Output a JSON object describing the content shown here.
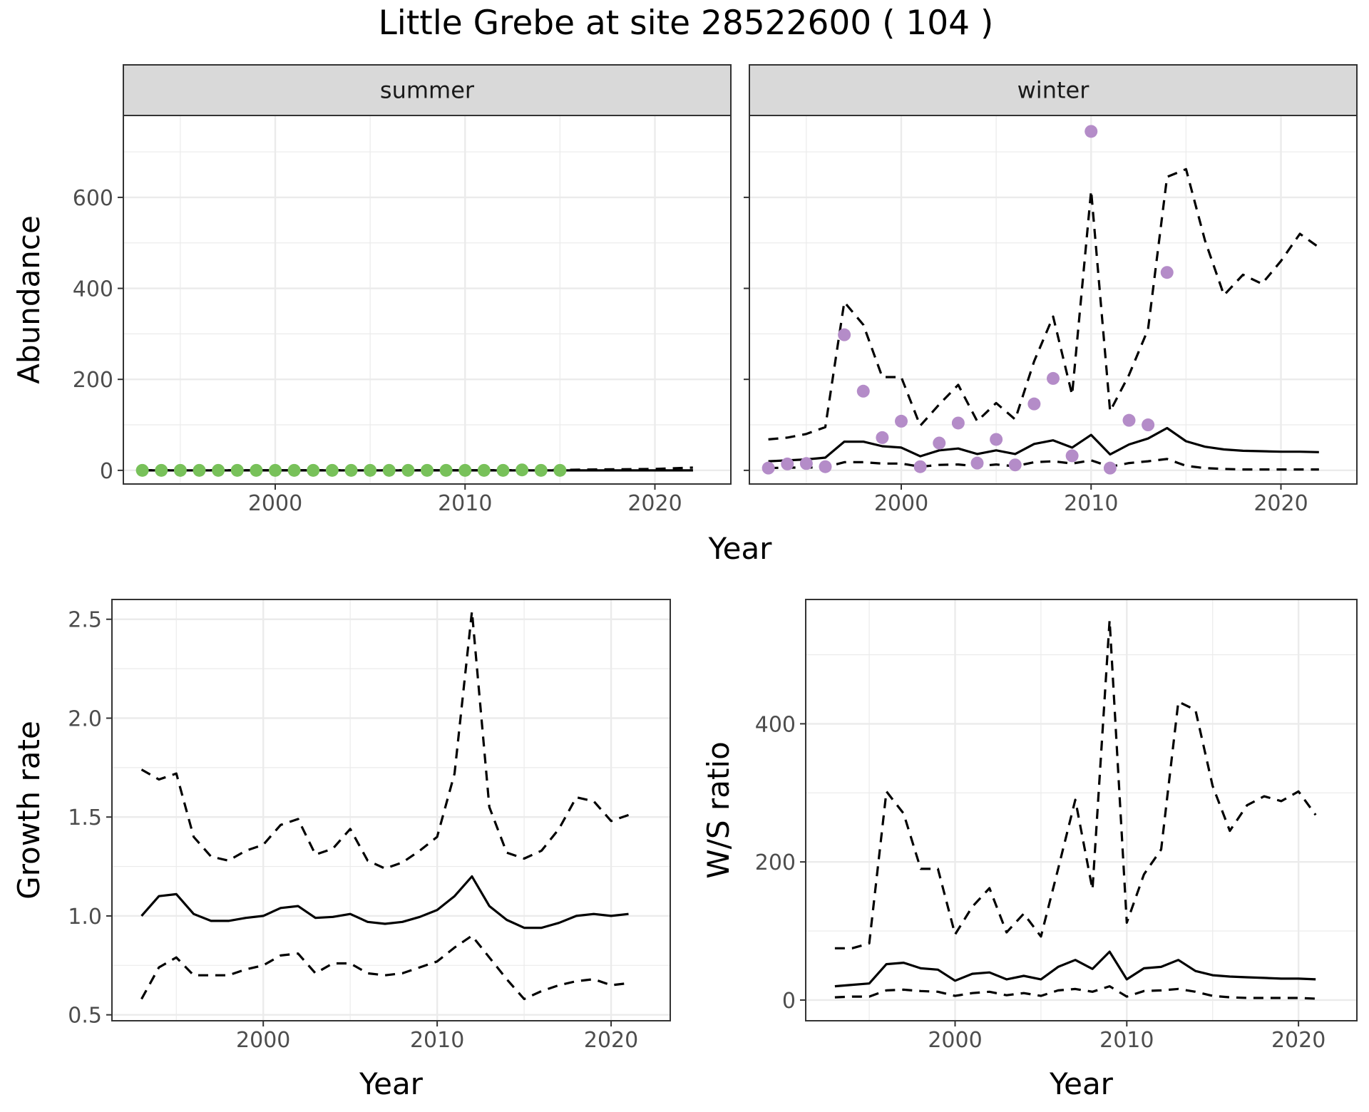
{
  "title": "Little Grebe at site 28522600 ( 104 )",
  "colors": {
    "summer_points": "#78c15a",
    "winter_points": "#b48cc8",
    "line": "#000000",
    "grid": "#ebebeb",
    "strip_bg": "#d9d9d9",
    "panel_border": "#333333"
  },
  "chart_data": [
    {
      "type": "scatter",
      "panel": "summer",
      "strip_label": "summer",
      "xlabel": "Year",
      "ylabel": "Abundance",
      "xlim": [
        1992,
        2024
      ],
      "ylim": [
        -30,
        780
      ],
      "x_ticks": [
        2000,
        2010,
        2020
      ],
      "x_tick_labels": [
        "2000",
        "2010",
        "2020"
      ],
      "y_ticks": [
        0,
        200,
        400,
        600
      ],
      "y_tick_labels": [
        "0",
        "200",
        "400",
        "600"
      ],
      "grid": true,
      "points": {
        "x": [
          1993,
          1994,
          1995,
          1996,
          1997,
          1998,
          1999,
          2000,
          2001,
          2002,
          2003,
          2004,
          2005,
          2006,
          2007,
          2008,
          2009,
          2010,
          2011,
          2012,
          2013,
          2014,
          2015
        ],
        "y": [
          0,
          0,
          0,
          0,
          0,
          0,
          0,
          0,
          0,
          0,
          0,
          0,
          0,
          0,
          0,
          0,
          0,
          0,
          0,
          0,
          1,
          0,
          0
        ]
      },
      "series": [
        {
          "x": [
            1993,
            2000,
            2010,
            2015,
            2018,
            2022
          ],
          "y": [
            0,
            0,
            0,
            0,
            0,
            0
          ],
          "dash": "solid"
        },
        {
          "x": [
            1993,
            2010,
            2015,
            2017,
            2020,
            2022
          ],
          "y": [
            0,
            0,
            1,
            2,
            3,
            6
          ],
          "dash": "dashed"
        },
        {
          "x": [
            1993,
            2022
          ],
          "y": [
            0,
            0
          ],
          "dash": "dashed"
        }
      ]
    },
    {
      "type": "scatter",
      "panel": "winter",
      "strip_label": "winter",
      "xlabel": "Year",
      "ylabel": "",
      "xlim": [
        1992,
        2024
      ],
      "ylim": [
        -30,
        780
      ],
      "x_ticks": [
        2000,
        2010,
        2020
      ],
      "x_tick_labels": [
        "2000",
        "2010",
        "2020"
      ],
      "y_ticks": [
        0,
        200,
        400,
        600
      ],
      "y_tick_labels": [],
      "grid": true,
      "points": {
        "x": [
          1993,
          1994,
          1995,
          1996,
          1997,
          1998,
          1999,
          2000,
          2001,
          2002,
          2003,
          2004,
          2005,
          2006,
          2007,
          2008,
          2009,
          2010,
          2011,
          2012,
          2013,
          2014
        ],
        "y": [
          5,
          14,
          15,
          8,
          298,
          174,
          72,
          108,
          8,
          60,
          104,
          16,
          68,
          12,
          146,
          202,
          32,
          745,
          5,
          110,
          100,
          435
        ]
      },
      "series": [
        {
          "x": [
            1993,
            1994,
            1995,
            1996,
            1997,
            1998,
            1999,
            2000,
            2001,
            2002,
            2003,
            2004,
            2005,
            2006,
            2007,
            2008,
            2009,
            2010,
            2011,
            2012,
            2013,
            2014,
            2015,
            2016,
            2017,
            2018,
            2019,
            2020,
            2021,
            2022
          ],
          "y": [
            20,
            22,
            24,
            28,
            63,
            63,
            53,
            50,
            31,
            44,
            48,
            36,
            44,
            36,
            58,
            66,
            50,
            78,
            35,
            57,
            70,
            93,
            64,
            52,
            46,
            43,
            42,
            41,
            41,
            40
          ],
          "dash": "solid"
        },
        {
          "x": [
            1993,
            1994,
            1995,
            1996,
            1997,
            1998,
            1999,
            2000,
            2001,
            2002,
            2003,
            2004,
            2005,
            2006,
            2007,
            2008,
            2009,
            2010,
            2011,
            2012,
            2013,
            2014,
            2015,
            2016,
            2017,
            2018,
            2019,
            2020,
            2021,
            2022
          ],
          "y": [
            68,
            72,
            80,
            95,
            370,
            320,
            205,
            205,
            98,
            145,
            188,
            108,
            148,
            112,
            240,
            338,
            166,
            615,
            130,
            210,
            310,
            645,
            662,
            505,
            385,
            430,
            410,
            460,
            520,
            490
          ],
          "dash": "dashed"
        },
        {
          "x": [
            1993,
            1994,
            1995,
            1996,
            1997,
            1998,
            1999,
            2000,
            2001,
            2002,
            2003,
            2004,
            2005,
            2006,
            2007,
            2008,
            2009,
            2010,
            2011,
            2012,
            2013,
            2014,
            2015,
            2016,
            2017,
            2018,
            2019,
            2020,
            2021,
            2022
          ],
          "y": [
            5,
            6,
            6,
            7,
            18,
            18,
            15,
            15,
            8,
            12,
            13,
            9,
            13,
            9,
            18,
            20,
            15,
            22,
            8,
            16,
            20,
            25,
            10,
            5,
            3,
            2,
            2,
            2,
            2,
            2
          ],
          "dash": "dashed"
        }
      ]
    },
    {
      "type": "line",
      "panel": "growth",
      "xlabel": "Year",
      "ylabel": "Growth rate",
      "xlim": [
        1991.3,
        2023.4
      ],
      "ylim": [
        0.47,
        2.6
      ],
      "x_ticks": [
        2000,
        2010,
        2020
      ],
      "x_tick_labels": [
        "2000",
        "2010",
        "2020"
      ],
      "y_ticks": [
        0.5,
        1.0,
        1.5,
        2.0,
        2.5
      ],
      "y_tick_labels": [
        "0.5",
        "1.0",
        "1.5",
        "2.0",
        "2.5"
      ],
      "grid": true,
      "series": [
        {
          "x": [
            1993,
            1994,
            1995,
            1996,
            1997,
            1998,
            1999,
            2000,
            2001,
            2002,
            2003,
            2004,
            2005,
            2006,
            2007,
            2008,
            2009,
            2010,
            2011,
            2012,
            2013,
            2014,
            2015,
            2016,
            2017,
            2018,
            2019,
            2020,
            2021
          ],
          "y": [
            1.0,
            1.1,
            1.11,
            1.01,
            0.975,
            0.975,
            0.99,
            1.0,
            1.04,
            1.05,
            0.99,
            0.995,
            1.01,
            0.97,
            0.96,
            0.97,
            0.995,
            1.03,
            1.1,
            1.2,
            1.05,
            0.98,
            0.94,
            0.94,
            0.965,
            1.0,
            1.01,
            1.0,
            1.01
          ],
          "dash": "solid"
        },
        {
          "x": [
            1993,
            1994,
            1995,
            1996,
            1997,
            1998,
            1999,
            2000,
            2001,
            2002,
            2003,
            2004,
            2005,
            2006,
            2007,
            2008,
            2009,
            2010,
            2011,
            2012,
            2013,
            2014,
            2015,
            2016,
            2017,
            2018,
            2019,
            2020,
            2021
          ],
          "y": [
            1.74,
            1.69,
            1.72,
            1.4,
            1.3,
            1.28,
            1.33,
            1.36,
            1.46,
            1.49,
            1.31,
            1.34,
            1.44,
            1.28,
            1.24,
            1.27,
            1.33,
            1.4,
            1.72,
            2.54,
            1.55,
            1.32,
            1.29,
            1.33,
            1.44,
            1.6,
            1.58,
            1.48,
            1.51
          ],
          "dash": "dashed"
        },
        {
          "x": [
            1993,
            1994,
            1995,
            1996,
            1997,
            1998,
            1999,
            2000,
            2001,
            2002,
            2003,
            2004,
            2005,
            2006,
            2007,
            2008,
            2009,
            2010,
            2011,
            2012,
            2013,
            2014,
            2015,
            2016,
            2017,
            2018,
            2019,
            2020,
            2021
          ],
          "y": [
            0.58,
            0.74,
            0.79,
            0.7,
            0.7,
            0.7,
            0.73,
            0.75,
            0.8,
            0.81,
            0.71,
            0.76,
            0.76,
            0.71,
            0.7,
            0.71,
            0.74,
            0.77,
            0.84,
            0.9,
            0.79,
            0.68,
            0.58,
            0.62,
            0.65,
            0.67,
            0.68,
            0.65,
            0.66
          ],
          "dash": "dashed"
        }
      ]
    },
    {
      "type": "line",
      "panel": "ws_ratio",
      "xlabel": "Year",
      "ylabel": "W/S ratio",
      "xlim": [
        1991.3,
        2023.4
      ],
      "ylim": [
        -30,
        580
      ],
      "x_ticks": [
        2000,
        2010,
        2020
      ],
      "x_tick_labels": [
        "2000",
        "2010",
        "2020"
      ],
      "y_ticks": [
        0,
        200,
        400
      ],
      "y_tick_labels": [
        "0",
        "200",
        "400"
      ],
      "grid": true,
      "series": [
        {
          "x": [
            1993,
            1994,
            1995,
            1996,
            1997,
            1998,
            1999,
            2000,
            2001,
            2002,
            2003,
            2004,
            2005,
            2006,
            2007,
            2008,
            2009,
            2010,
            2011,
            2012,
            2013,
            2014,
            2015,
            2016,
            2017,
            2018,
            2019,
            2020,
            2021
          ],
          "y": [
            20,
            22,
            24,
            52,
            54,
            46,
            44,
            28,
            38,
            40,
            30,
            35,
            30,
            48,
            58,
            45,
            70,
            30,
            46,
            48,
            58,
            42,
            36,
            34,
            33,
            32,
            31,
            31,
            30
          ],
          "dash": "solid"
        },
        {
          "x": [
            1993,
            1994,
            1995,
            1996,
            1997,
            1998,
            1999,
            2000,
            2001,
            2002,
            2003,
            2004,
            2005,
            2006,
            2007,
            2008,
            2009,
            2010,
            2011,
            2012,
            2013,
            2014,
            2015,
            2016,
            2017,
            2018,
            2019,
            2020,
            2021
          ],
          "y": [
            75,
            75,
            82,
            302,
            270,
            190,
            190,
            95,
            135,
            162,
            98,
            125,
            92,
            190,
            290,
            160,
            550,
            112,
            182,
            218,
            432,
            420,
            310,
            245,
            282,
            295,
            288,
            302,
            268
          ],
          "dash": "dashed"
        },
        {
          "x": [
            1993,
            1994,
            1995,
            1996,
            1997,
            1998,
            1999,
            2000,
            2001,
            2002,
            2003,
            2004,
            2005,
            2006,
            2007,
            2008,
            2009,
            2010,
            2011,
            2012,
            2013,
            2014,
            2015,
            2016,
            2017,
            2018,
            2019,
            2020,
            2021
          ],
          "y": [
            4,
            5,
            5,
            14,
            15,
            13,
            12,
            6,
            10,
            12,
            7,
            10,
            6,
            14,
            16,
            12,
            20,
            5,
            13,
            14,
            16,
            12,
            6,
            4,
            3,
            3,
            3,
            3,
            2
          ],
          "dash": "dashed"
        }
      ]
    }
  ]
}
